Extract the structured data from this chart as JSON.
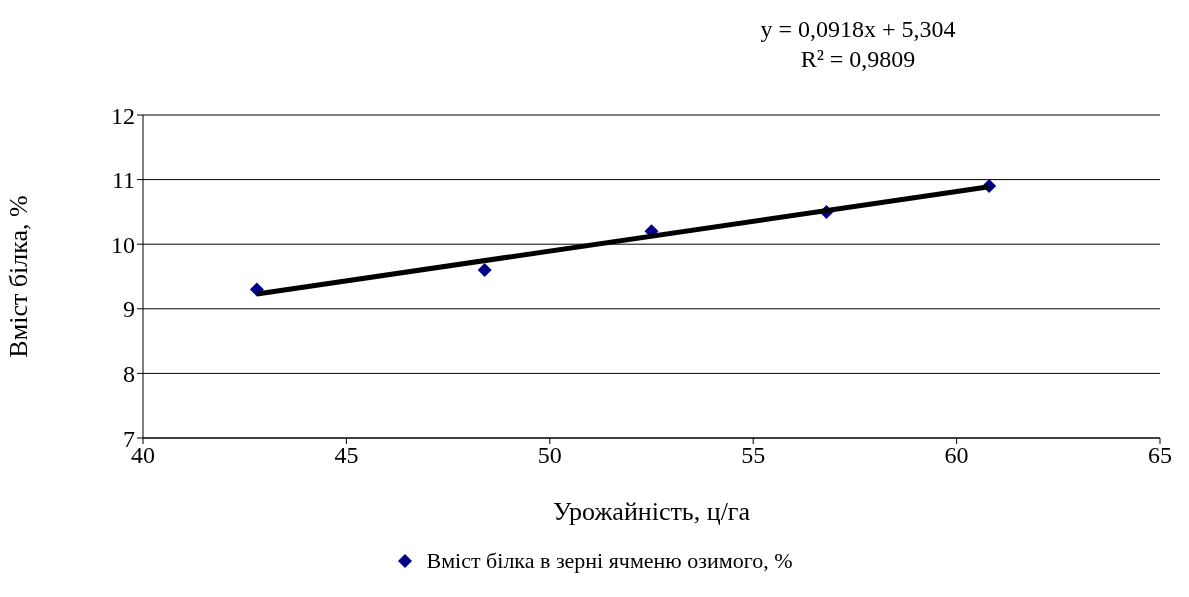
{
  "chart_data": {
    "type": "scatter",
    "xlabel": "Урожайність, ц/га",
    "ylabel": "Вміст білка, %",
    "annotations": [
      "y = 0,0918x + 5,304",
      "R² = 0,9809"
    ],
    "x": [
      42.8,
      48.4,
      52.5,
      56.8,
      60.8
    ],
    "series": [
      {
        "name": "Вміст білка в зерні ячменю озимого, %",
        "type": "scatter",
        "color": "#00008b",
        "marker": "diamond",
        "values": [
          9.3,
          9.6,
          10.2,
          10.5,
          10.9
        ]
      },
      {
        "type": "line",
        "x": [
          42.8,
          60.8
        ],
        "color": "#000000",
        "marker": "none",
        "line_style": "solid",
        "values": [
          9.23,
          10.89
        ]
      }
    ],
    "xlim": [
      40,
      65
    ],
    "xticks": [
      40,
      45,
      50,
      55,
      60,
      65
    ],
    "ylim": [
      7,
      12
    ],
    "yticks": [
      7,
      8,
      9,
      10,
      11,
      12
    ],
    "grid": "y",
    "legend": "bottom"
  }
}
